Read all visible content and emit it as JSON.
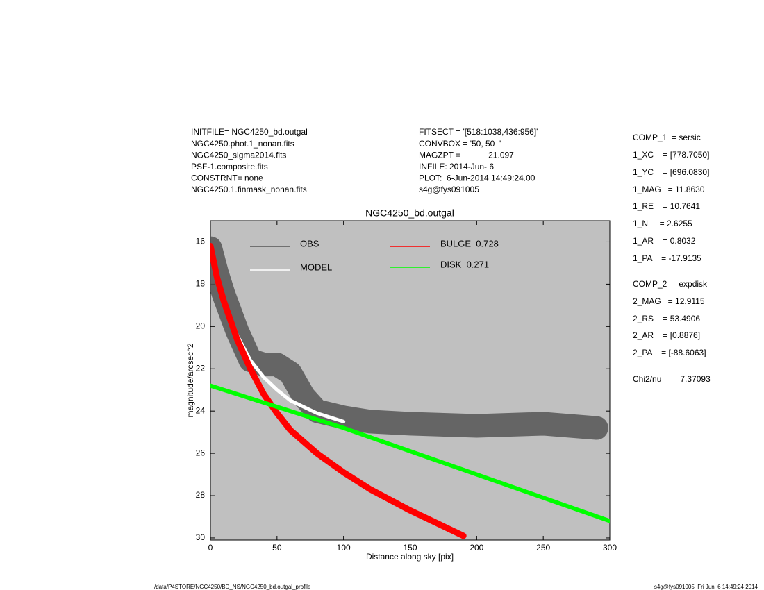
{
  "header": {
    "left": [
      "INITFILE= NGC4250_bd.outgal",
      "NGC4250.phot.1_nonan.fits",
      "NGC4250_sigma2014.fits",
      "PSF-1.composite.fits",
      "CONSTRNT= none",
      "NGC4250.1.finmask_nonan.fits"
    ],
    "middle": [
      "FITSECT = '[518:1038,436:956]'",
      "CONVBOX = '50, 50  '",
      "MAGZPT =            21.097",
      "INFILE: 2014-Jun- 6",
      "PLOT:  6-Jun-2014 14:49:24.00",
      "s4g@fys091005"
    ]
  },
  "params": [
    "COMP_1  = sersic",
    "1_XC    = [778.7050]",
    "1_YC    = [696.0830]",
    "1_MAG   = 11.8630",
    "1_RE    = 10.7641",
    "1_N     = 2.6255",
    "1_AR    = 0.8032",
    "1_PA    = -17.9135",
    "COMP_2  = expdisk",
    "2_MAG   = 12.9115",
    "2_RS    = 53.4906",
    "2_AR    = [0.8876]",
    "2_PA    = [-88.6063]",
    "Chi2/nu=      7.37093"
  ],
  "footer": {
    "left": "/data/P4STORE/NGC4250/BD_NS/NGC4250_bd.outgal_profile",
    "right": "s4g@fys091005  Fri Jun  6 14:49:24 2014"
  },
  "chart_data": {
    "type": "line",
    "title": "NGC4250_bd.outgal",
    "xlabel": "Distance along sky [pix]",
    "ylabel": "magnitude/arcsec^2",
    "xlim": [
      0,
      300
    ],
    "xticks": [
      0,
      50,
      100,
      150,
      200,
      250,
      300
    ],
    "ylim": [
      30.1,
      15
    ],
    "yticks": [
      16,
      18,
      20,
      22,
      24,
      26,
      28,
      30
    ],
    "series": [
      {
        "name": "OBS",
        "color": "#555555",
        "x": [
          0,
          5,
          10,
          20,
          30,
          40,
          50,
          60,
          70,
          80,
          100,
          120,
          150,
          200,
          250,
          290
        ],
        "values": [
          16.3,
          17.5,
          18.5,
          20.2,
          21.6,
          21.8,
          21.8,
          22.2,
          23.3,
          24.0,
          24.3,
          24.5,
          24.6,
          24.7,
          24.6,
          24.8
        ]
      },
      {
        "name": "MODEL",
        "color": "#ffffff",
        "x": [
          0,
          5,
          10,
          20,
          30,
          40,
          50,
          60,
          70,
          80,
          90,
          100
        ],
        "values": [
          16.2,
          17.6,
          18.7,
          20.4,
          21.6,
          22.4,
          23.0,
          23.5,
          23.8,
          24.1,
          24.3,
          24.5
        ]
      },
      {
        "name": "BULGE  0.728",
        "color": "#ff0000",
        "x": [
          0,
          5,
          10,
          20,
          30,
          40,
          50,
          60,
          80,
          100,
          120,
          150,
          190
        ],
        "values": [
          16.2,
          17.7,
          18.8,
          20.6,
          22.0,
          23.2,
          24.1,
          24.9,
          26.0,
          26.9,
          27.7,
          28.7,
          29.9
        ]
      },
      {
        "name": "DISK  0.271",
        "color": "#00ff00",
        "x": [
          0,
          50,
          100,
          150,
          200,
          250,
          300
        ],
        "values": [
          22.8,
          23.8,
          24.8,
          25.9,
          27.0,
          28.1,
          29.2
        ]
      }
    ]
  }
}
